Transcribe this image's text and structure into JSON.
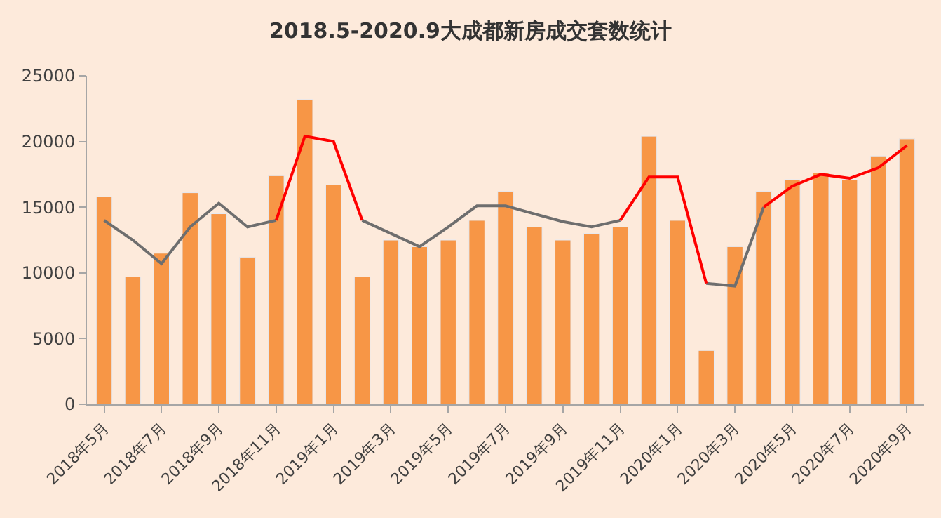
{
  "chart_data": {
    "type": "bar",
    "title": "2018.5-2020.9大成都新房成交套数统计",
    "categories": [
      "2018年5月",
      null,
      "2018年7月",
      null,
      "2018年9月",
      null,
      "2018年11月",
      null,
      "2019年1月",
      null,
      "2019年3月",
      null,
      "2019年5月",
      null,
      "2019年7月",
      null,
      "2019年9月",
      null,
      "2019年11月",
      null,
      "2020年1月",
      null,
      "2020年3月",
      null,
      "2020年5月",
      null,
      "2020年7月",
      null,
      "2020年9月"
    ],
    "series": [
      {
        "color": "#f79646",
        "values": [
          15800,
          9700,
          11500,
          16100,
          14500,
          11200,
          17400,
          23200,
          16700,
          9700,
          12500,
          12000,
          12500,
          14000,
          16200,
          13500,
          12500,
          13000,
          13500,
          20400,
          14000,
          4100,
          12000,
          16200,
          17100,
          17600,
          17100,
          18900,
          20200
        ]
      },
      {
        "type": "line",
        "color": "#6e6e6e",
        "values": [
          14000,
          12500,
          10700,
          13500,
          15300,
          13500,
          14000,
          null,
          null,
          14000,
          13000,
          12000,
          13500,
          15100,
          15100,
          14500,
          13900,
          13500,
          14000,
          null,
          null,
          9200,
          9000,
          15000,
          null,
          null,
          null,
          null,
          null
        ]
      },
      {
        "type": "line",
        "color": "#ff0000",
        "values": [
          null,
          null,
          null,
          null,
          null,
          null,
          14000,
          20400,
          20000,
          14000,
          null,
          null,
          null,
          null,
          null,
          null,
          null,
          null,
          14000,
          17300,
          17300,
          9200,
          null,
          15000,
          16600,
          17500,
          17200,
          18000,
          19700
        ]
      }
    ],
    "ylim": [
      0,
      25000
    ],
    "yticks": [
      0,
      5000,
      10000,
      15000,
      20000,
      25000
    ],
    "grid": false,
    "marker": "none",
    "line_style": "solid"
  }
}
